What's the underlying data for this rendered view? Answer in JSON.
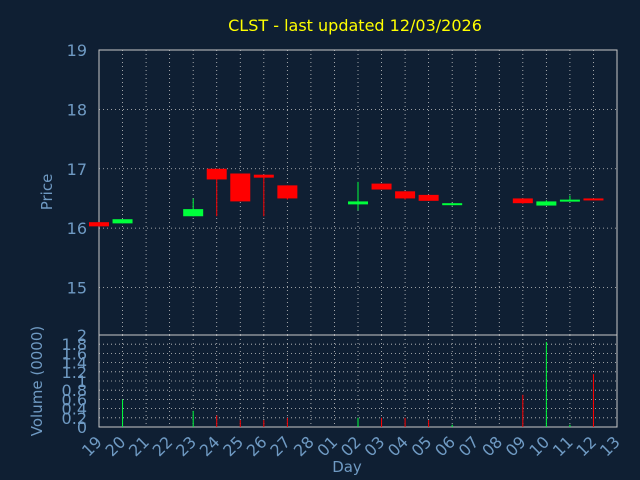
{
  "chart_data": {
    "type": "candlestick",
    "title": "CLST - last updated 12/03/2026",
    "xlabel": "Day",
    "price_ylabel": "Price",
    "volume_ylabel": "Volume (0000)",
    "price_ylim": [
      14.2,
      19
    ],
    "price_ticks": [
      "15",
      "16",
      "17",
      "18",
      "19"
    ],
    "volume_ylim": [
      0,
      2
    ],
    "volume_ticks": [
      "0",
      "0.2",
      "0.4",
      "0.6",
      "0.8",
      "1",
      "1.2",
      "1.4",
      "1.6",
      "1.8",
      "2"
    ],
    "x_ticks": [
      "19",
      "20",
      "21",
      "22",
      "23",
      "24",
      "25",
      "26",
      "27",
      "28",
      "01",
      "02",
      "03",
      "04",
      "05",
      "06",
      "07",
      "08",
      "09",
      "10",
      "11",
      "12",
      "13"
    ],
    "candles": [
      {
        "day": "19",
        "open": 16.1,
        "high": 16.1,
        "low": 16.03,
        "close": 16.03,
        "volume": 0.0
      },
      {
        "day": "20",
        "open": 16.08,
        "high": 16.15,
        "low": 16.08,
        "close": 16.15,
        "volume": 0.6
      },
      {
        "day": "23",
        "open": 16.2,
        "high": 16.5,
        "low": 16.2,
        "close": 16.32,
        "volume": 0.35
      },
      {
        "day": "24",
        "open": 17.0,
        "high": 17.0,
        "low": 16.2,
        "close": 16.82,
        "volume": 0.25
      },
      {
        "day": "25",
        "open": 16.92,
        "high": 16.92,
        "low": 16.45,
        "close": 16.45,
        "volume": 0.15
      },
      {
        "day": "26",
        "open": 16.9,
        "high": 16.9,
        "low": 16.2,
        "close": 16.85,
        "volume": 0.15
      },
      {
        "day": "27",
        "open": 16.72,
        "high": 16.72,
        "low": 16.48,
        "close": 16.5,
        "volume": 0.2
      },
      {
        "day": "02",
        "open": 16.4,
        "high": 16.78,
        "low": 16.3,
        "close": 16.45,
        "volume": 0.2
      },
      {
        "day": "03",
        "open": 16.75,
        "high": 16.75,
        "low": 16.65,
        "close": 16.65,
        "volume": 0.2
      },
      {
        "day": "04",
        "open": 16.62,
        "high": 16.62,
        "low": 16.48,
        "close": 16.5,
        "volume": 0.2
      },
      {
        "day": "05",
        "open": 16.56,
        "high": 16.56,
        "low": 16.46,
        "close": 16.46,
        "volume": 0.15
      },
      {
        "day": "06",
        "open": 16.4,
        "high": 16.42,
        "low": 16.38,
        "close": 16.42,
        "volume": 0.05
      },
      {
        "day": "09",
        "open": 16.5,
        "high": 16.5,
        "low": 16.41,
        "close": 16.42,
        "volume": 0.7
      },
      {
        "day": "10",
        "open": 16.38,
        "high": 16.47,
        "low": 16.38,
        "close": 16.45,
        "volume": 1.85
      },
      {
        "day": "11",
        "open": 16.45,
        "high": 16.55,
        "low": 16.45,
        "close": 16.48,
        "volume": 0.05
      },
      {
        "day": "12",
        "open": 16.5,
        "high": 16.5,
        "low": 16.48,
        "close": 16.48,
        "volume": 1.15
      }
    ]
  },
  "colors": {
    "background": "#0f1f33",
    "plot_background": "#0f1f33",
    "grid": "#c8c8c8",
    "title": "#ffff00",
    "axis_text": "#6f9ac3",
    "up": "#00ff3c",
    "down": "#ff0000"
  }
}
